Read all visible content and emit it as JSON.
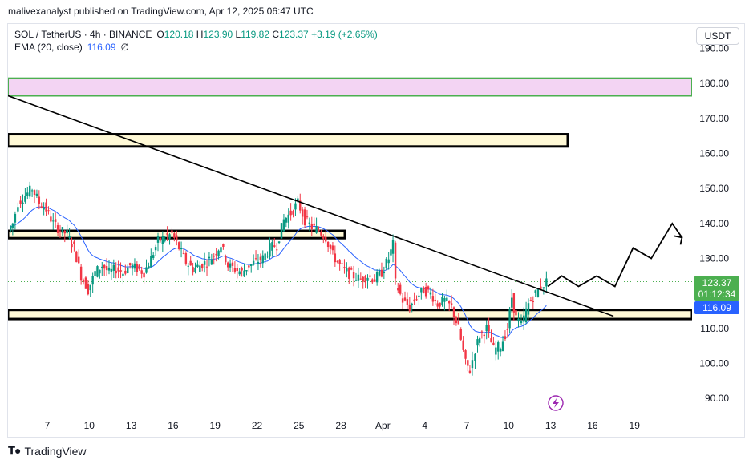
{
  "header": {
    "published_text": "malivexanalyst published on TradingView.com, Apr 12, 2025 06:47 UTC"
  },
  "legend": {
    "symbol": "SOL / TetherUS · 4h · BINANCE",
    "open_label": "O",
    "open": "120.18",
    "high_label": "H",
    "high": "123.90",
    "low_label": "L",
    "low": "119.82",
    "close_label": "C",
    "close": "123.37",
    "change": "+3.19 (+2.65%)",
    "ema_label": "EMA (20, close)",
    "ema_value": "116.09",
    "ema_extra": "∅"
  },
  "currency_button": "USDT",
  "last_price": {
    "price": "123.37",
    "countdown": "01:12:34",
    "ema": "116.09"
  },
  "footer": {
    "brand": "TradingView"
  },
  "colors": {
    "up": "#089981",
    "down": "#f23645",
    "ema": "#2962ff",
    "badge": "#4caf50"
  },
  "chart_data": {
    "type": "candlestick",
    "symbol": "SOL / TetherUS",
    "interval": "4h",
    "exchange": "BINANCE",
    "ylim": [
      85,
      197
    ],
    "y_ticks": [
      "190.00",
      "180.00",
      "170.00",
      "160.00",
      "150.00",
      "140.00",
      "130.00",
      "120.00",
      "110.00",
      "100.00",
      "90.00"
    ],
    "x_ticks": [
      "7",
      "10",
      "13",
      "16",
      "19",
      "22",
      "25",
      "28",
      "Apr",
      "4",
      "7",
      "10",
      "13",
      "16",
      "19"
    ],
    "x_days_range": [
      3.3,
      21.8
    ],
    "price_path": [
      [
        4.3,
        138
      ],
      [
        4.6,
        140
      ],
      [
        5.0,
        146
      ],
      [
        5.5,
        148
      ],
      [
        6.0,
        150
      ],
      [
        6.5,
        146
      ],
      [
        7.0,
        144
      ],
      [
        7.5,
        140
      ],
      [
        8.0,
        138
      ],
      [
        8.5,
        137
      ],
      [
        9.0,
        133
      ],
      [
        9.5,
        125
      ],
      [
        10.0,
        121
      ],
      [
        10.5,
        126
      ],
      [
        11.0,
        128
      ],
      [
        11.5,
        126
      ],
      [
        12.0,
        127
      ],
      [
        12.5,
        126
      ],
      [
        13.0,
        128
      ],
      [
        13.5,
        127
      ],
      [
        14.0,
        126
      ],
      [
        14.5,
        130
      ],
      [
        15.0,
        135
      ],
      [
        15.5,
        136
      ],
      [
        16.0,
        137
      ],
      [
        16.5,
        133
      ],
      [
        17.0,
        129
      ],
      [
        17.5,
        127
      ],
      [
        18.0,
        128
      ],
      [
        18.5,
        129
      ],
      [
        19.0,
        131
      ],
      [
        19.5,
        134
      ],
      [
        20.0,
        128
      ],
      [
        20.5,
        127
      ],
      [
        21.0,
        126
      ],
      [
        21.5,
        128
      ],
      [
        22.0,
        129
      ],
      [
        22.5,
        130
      ],
      [
        23.0,
        133
      ],
      [
        23.5,
        134
      ],
      [
        24.0,
        141
      ],
      [
        24.5,
        143
      ],
      [
        25.0,
        146
      ],
      [
        25.5,
        141
      ],
      [
        26.0,
        139
      ],
      [
        26.5,
        138
      ],
      [
        27.0,
        136
      ],
      [
        27.5,
        131
      ],
      [
        28.0,
        128
      ],
      [
        28.5,
        126
      ],
      [
        29.0,
        125
      ],
      [
        29.5,
        124
      ],
      [
        30.0,
        125
      ],
      [
        30.5,
        124
      ],
      [
        31.0,
        126
      ],
      [
        31.5,
        130
      ],
      [
        31.8,
        134
      ],
      [
        32.0,
        123
      ],
      [
        32.5,
        118
      ],
      [
        33.0,
        116
      ],
      [
        33.5,
        119
      ],
      [
        34.0,
        121
      ],
      [
        34.5,
        120
      ],
      [
        35.0,
        117
      ],
      [
        35.5,
        118
      ],
      [
        36.0,
        116
      ],
      [
        36.5,
        110
      ],
      [
        37.0,
        100
      ],
      [
        37.3,
        98
      ],
      [
        37.7,
        104
      ],
      [
        38.0,
        108
      ],
      [
        38.5,
        110
      ],
      [
        39.0,
        104
      ],
      [
        39.5,
        105
      ],
      [
        40.0,
        110
      ],
      [
        40.3,
        119
      ],
      [
        40.6,
        113
      ],
      [
        41.0,
        111
      ],
      [
        41.5,
        117
      ],
      [
        42.0,
        120
      ],
      [
        42.4,
        122
      ],
      [
        42.8,
        123.37
      ]
    ],
    "ema": {
      "label": "EMA (20, close)",
      "last": 116.09
    },
    "zones": [
      {
        "from": 176.5,
        "to": 181.5,
        "fill": "#f3d4f3",
        "border": "#4caf50"
      },
      {
        "from": 162,
        "to": 165.5,
        "fill": "#fff9d6",
        "border": "#000000"
      },
      {
        "from": 135.8,
        "to": 137.9,
        "fill": "#fff9d6",
        "border": "#000000"
      },
      {
        "from": 112.7,
        "to": 115.3,
        "fill": "#fff9d6",
        "border": "#000000"
      }
    ],
    "trendline": [
      [
        3.3,
        177.8
      ],
      [
        47.5,
        113.5
      ]
    ],
    "projection": [
      [
        42.8,
        122
      ],
      [
        43.8,
        125
      ],
      [
        45.0,
        122
      ],
      [
        46.3,
        125
      ],
      [
        47.6,
        122
      ],
      [
        48.9,
        133
      ],
      [
        50.2,
        130
      ],
      [
        51.7,
        140
      ],
      [
        52.4,
        136
      ]
    ],
    "last_price": 123.37
  }
}
